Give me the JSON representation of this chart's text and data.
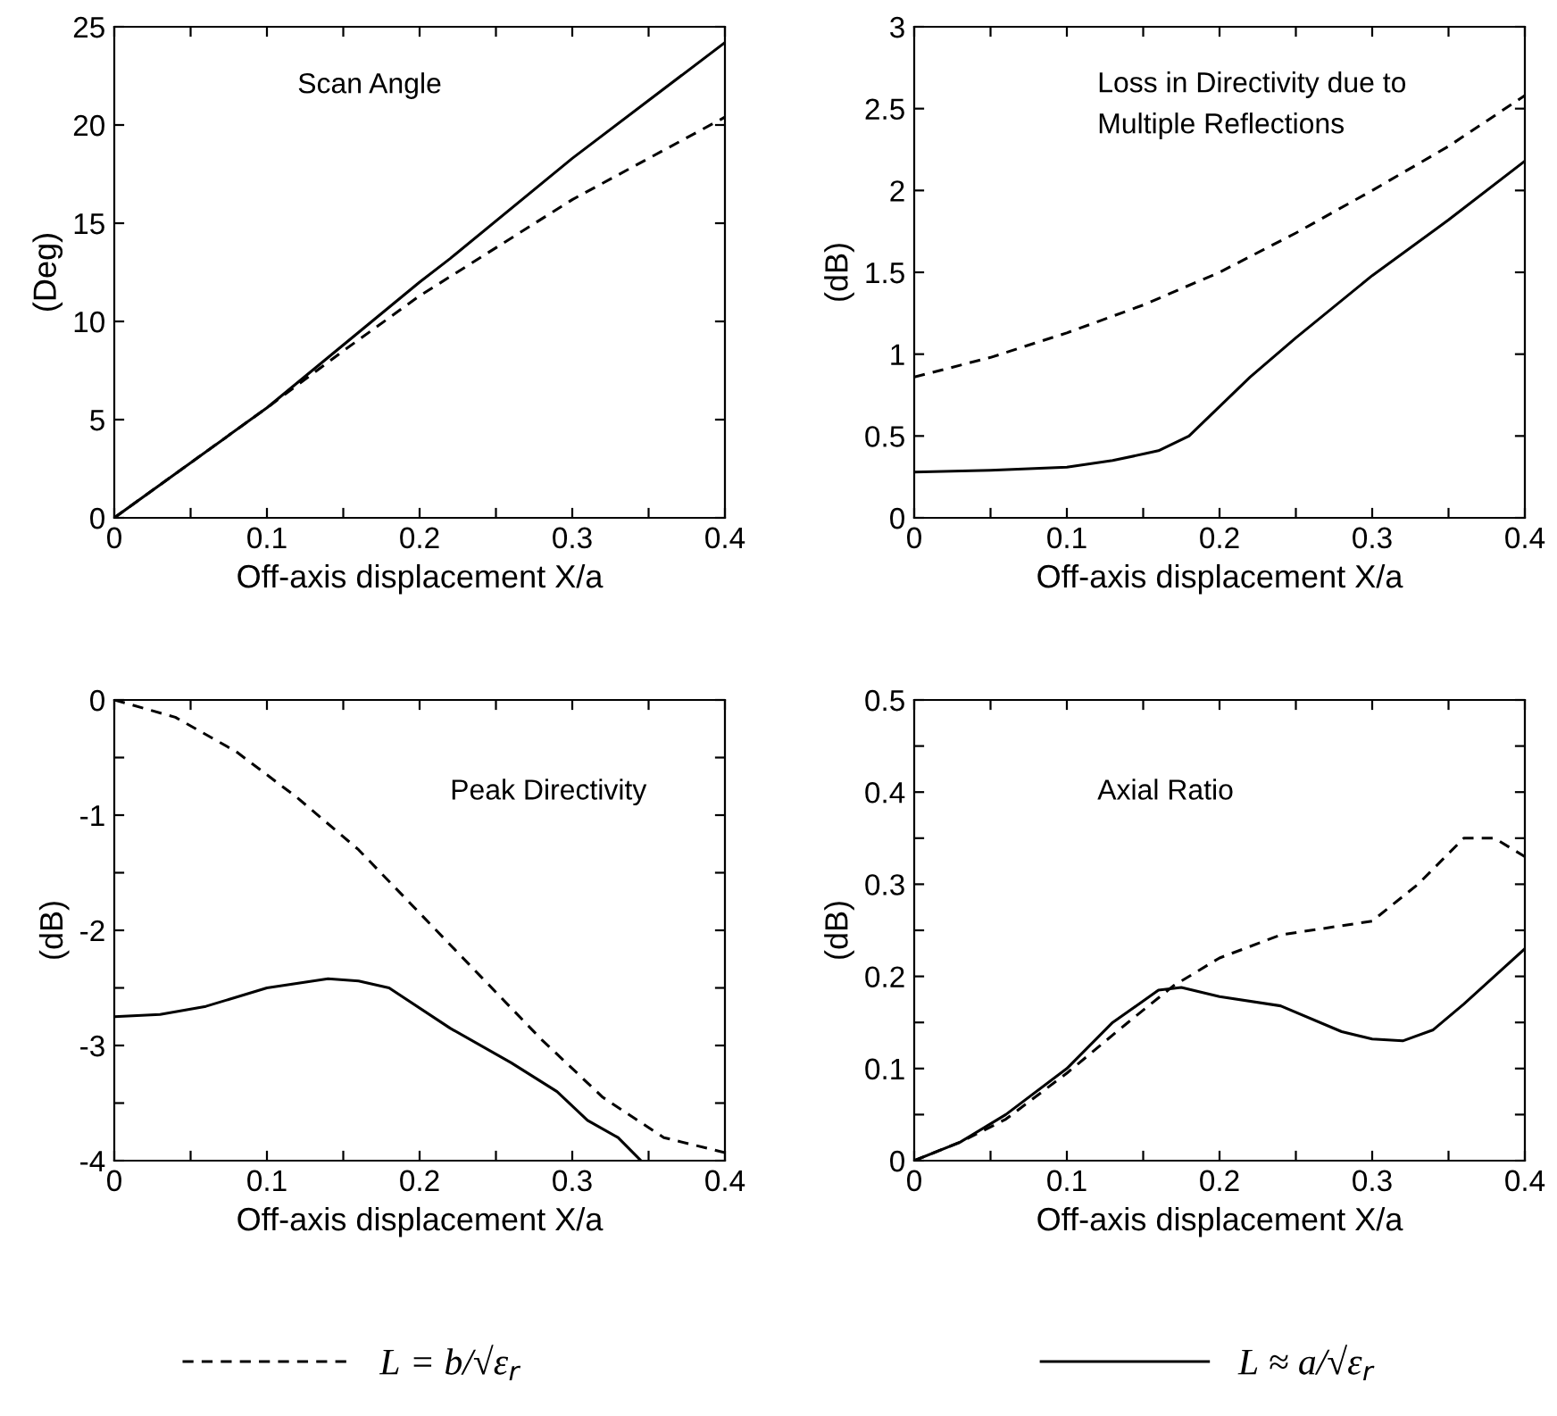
{
  "chart_data": [
    {
      "type": "line",
      "xlabel": "Off-axis displacement X/a",
      "ylabel": "(Deg)",
      "annotations": [
        "Scan Angle"
      ],
      "legend": "bottom",
      "xlim": [
        0,
        0.4
      ],
      "ylim": [
        0,
        25
      ],
      "xticks": [
        0,
        {
          "value": 0.05,
          "label": null
        },
        0.1,
        {
          "value": 0.15,
          "label": null
        },
        0.2,
        {
          "value": 0.25,
          "label": null
        },
        0.3,
        {
          "value": 0.35,
          "label": null
        },
        0.4
      ],
      "yticks": [
        0,
        5,
        10,
        15,
        20,
        25
      ],
      "series": [
        {
          "name": "L = b/√ε$_{r}$",
          "color": "#000000",
          "line_style": "dashed",
          "x": [
            0,
            0.1,
            0.15,
            0.2,
            0.3,
            0.4
          ],
          "values": [
            0,
            5.6,
            8.5,
            11.3,
            16.2,
            20.4
          ]
        },
        {
          "name": "L ≈ a/√ε$_{r}$",
          "color": "#000000",
          "line_style": "solid",
          "x": [
            0,
            0.1,
            0.2,
            0.22,
            0.3,
            0.4
          ],
          "values": [
            0,
            5.6,
            12,
            13.2,
            18.3,
            24.2
          ]
        }
      ]
    },
    {
      "type": "line",
      "xlabel": "Off-axis displacement X/a",
      "ylabel": "(dB)",
      "annotations": [
        "Loss in Directivity due to\nMultiple Reflections"
      ],
      "xlim": [
        0,
        0.4
      ],
      "ylim": [
        0,
        3
      ],
      "xticks": [
        0,
        {
          "value": 0.05,
          "label": null
        },
        0.1,
        {
          "value": 0.15,
          "label": null
        },
        0.2,
        {
          "value": 0.25,
          "label": null
        },
        0.3,
        {
          "value": 0.35,
          "label": null
        },
        0.4
      ],
      "yticks": [
        0,
        0.5,
        1,
        1.5,
        2,
        2.5,
        3
      ],
      "series": [
        {
          "color": "#000000",
          "line_style": "dashed",
          "x": [
            0,
            0.05,
            0.1,
            0.15,
            0.2,
            0.25,
            0.3,
            0.35,
            0.4
          ],
          "values": [
            0.86,
            0.98,
            1.13,
            1.3,
            1.5,
            1.74,
            2.0,
            2.27,
            2.58
          ]
        },
        {
          "color": "#000000",
          "line_style": "solid",
          "x": [
            0,
            0.05,
            0.1,
            0.13,
            0.16,
            0.18,
            0.22,
            0.25,
            0.3,
            0.35,
            0.4
          ],
          "values": [
            0.28,
            0.29,
            0.31,
            0.35,
            0.41,
            0.5,
            0.86,
            1.1,
            1.48,
            1.82,
            2.18
          ]
        }
      ]
    },
    {
      "type": "line",
      "xlabel": "Off-axis displacement X/a",
      "ylabel": "(dB)",
      "annotations": [
        "Peak Directivity"
      ],
      "xlim": [
        0,
        0.4
      ],
      "ylim": [
        -4,
        0
      ],
      "xticks": [
        0,
        {
          "value": 0.05,
          "label": null
        },
        0.1,
        {
          "value": 0.15,
          "label": null
        },
        0.2,
        {
          "value": 0.25,
          "label": null
        },
        0.3,
        {
          "value": 0.35,
          "label": null
        },
        0.4
      ],
      "yticks": [
        {
          "value": -4,
          "label": "-4"
        },
        {
          "value": -3.5,
          "label": null
        },
        {
          "value": -3,
          "label": "-3"
        },
        {
          "value": -2.5,
          "label": null
        },
        {
          "value": -2,
          "label": "-2"
        },
        {
          "value": -1.5,
          "label": null
        },
        {
          "value": -1,
          "label": "-1"
        },
        {
          "value": -0.5,
          "label": null
        },
        0
      ],
      "series": [
        {
          "color": "#000000",
          "line_style": "dashed",
          "x": [
            0,
            0.04,
            0.08,
            0.12,
            0.16,
            0.2,
            0.24,
            0.28,
            0.32,
            0.36,
            0.4
          ],
          "values": [
            0,
            -0.15,
            -0.45,
            -0.85,
            -1.3,
            -1.85,
            -2.4,
            -2.95,
            -3.45,
            -3.8,
            -3.93
          ]
        },
        {
          "color": "#000000",
          "line_style": "solid",
          "x": [
            0,
            0.03,
            0.06,
            0.1,
            0.14,
            0.16,
            0.18,
            0.22,
            0.26,
            0.29,
            0.31,
            0.33,
            0.345
          ],
          "values": [
            -2.75,
            -2.73,
            -2.66,
            -2.5,
            -2.42,
            -2.44,
            -2.5,
            -2.85,
            -3.15,
            -3.4,
            -3.65,
            -3.8,
            -4.0
          ]
        }
      ]
    },
    {
      "type": "line",
      "xlabel": "Off-axis displacement X/a",
      "ylabel": "(dB)",
      "annotations": [
        "Axial Ratio"
      ],
      "xlim": [
        0,
        0.4
      ],
      "ylim": [
        0,
        0.5
      ],
      "xticks": [
        0,
        {
          "value": 0.05,
          "label": null
        },
        0.1,
        {
          "value": 0.15,
          "label": null
        },
        0.2,
        {
          "value": 0.25,
          "label": null
        },
        0.3,
        {
          "value": 0.35,
          "label": null
        },
        0.4
      ],
      "yticks": [
        0,
        {
          "value": 0.05,
          "label": null
        },
        0.1,
        {
          "value": 0.15,
          "label": null
        },
        0.2,
        {
          "value": 0.25,
          "label": null
        },
        0.3,
        {
          "value": 0.35,
          "label": null
        },
        0.4,
        {
          "value": 0.45,
          "label": null
        },
        0.5
      ],
      "series": [
        {
          "color": "#000000",
          "line_style": "dashed",
          "x": [
            0,
            0.03,
            0.06,
            0.1,
            0.14,
            0.17,
            0.2,
            0.24,
            0.3,
            0.33,
            0.36,
            0.38,
            0.4
          ],
          "values": [
            0,
            0.02,
            0.045,
            0.095,
            0.15,
            0.19,
            0.22,
            0.245,
            0.26,
            0.3,
            0.35,
            0.35,
            0.33
          ]
        },
        {
          "color": "#000000",
          "line_style": "solid",
          "x": [
            0,
            0.03,
            0.06,
            0.1,
            0.13,
            0.16,
            0.175,
            0.2,
            0.24,
            0.28,
            0.3,
            0.32,
            0.34,
            0.36,
            0.38,
            0.4
          ],
          "values": [
            0,
            0.02,
            0.05,
            0.1,
            0.15,
            0.185,
            0.188,
            0.178,
            0.168,
            0.14,
            0.132,
            0.13,
            0.142,
            0.17,
            0.2,
            0.23
          ]
        }
      ]
    }
  ]
}
